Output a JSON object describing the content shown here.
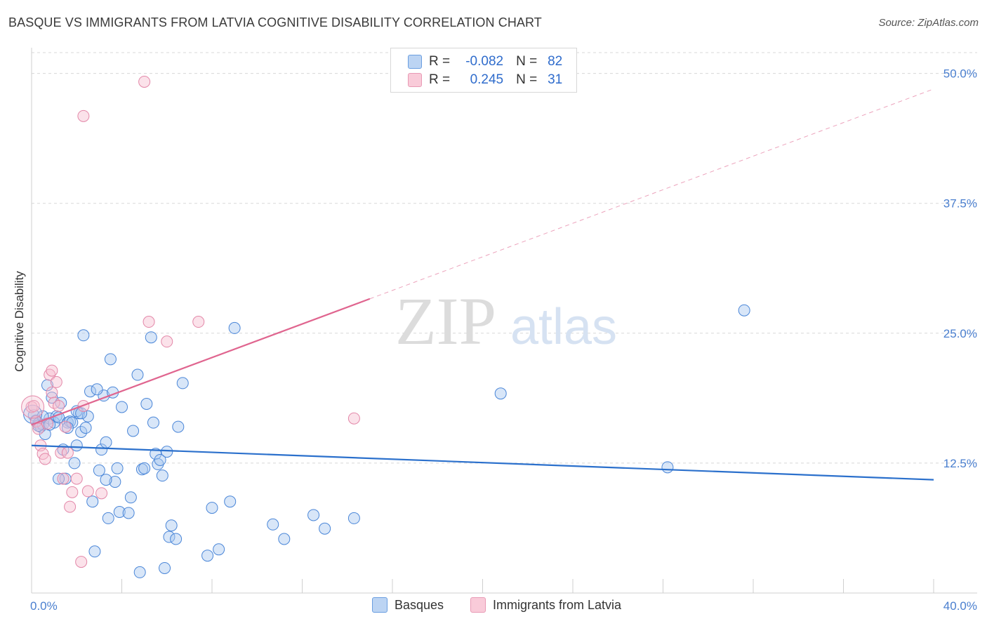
{
  "header": {
    "title": "BASQUE VS IMMIGRANTS FROM LATVIA COGNITIVE DISABILITY CORRELATION CHART",
    "source": "Source: ZipAtlas.com"
  },
  "legend": {
    "rows": [
      {
        "r_label": "R =",
        "r_value": "-0.082",
        "n_label": "N =",
        "n_value": "82"
      },
      {
        "r_label": "R =",
        "r_value": "0.245",
        "n_label": "N =",
        "n_value": "31"
      }
    ]
  },
  "bottom_legend": {
    "items": [
      {
        "label": "Basques"
      },
      {
        "label": "Immigrants from Latvia"
      }
    ]
  },
  "watermark": {
    "zip": "ZIP",
    "atlas": "atlas"
  },
  "colors": {
    "basques_fill": "#a9c8f0",
    "basques_stroke": "#4a86d8",
    "basques_line": "#2b70cc",
    "latvia_fill": "#f7bfd0",
    "latvia_stroke": "#e387a8",
    "latvia_line": "#e0658f",
    "tick_text": "#4a7fcf",
    "grid": "#d8d8d8"
  },
  "chart_data": {
    "type": "scatter",
    "title": "BASQUE VS IMMIGRANTS FROM LATVIA COGNITIVE DISABILITY CORRELATION CHART",
    "xlabel": "",
    "ylabel": "Cognitive Disability",
    "xlim": [
      0,
      40
    ],
    "ylim": [
      0,
      52
    ],
    "x_ticks": [
      0,
      4,
      8,
      12,
      16,
      20,
      24,
      28,
      32,
      36,
      40
    ],
    "x_tick_labels": {
      "0": "0.0%",
      "40": "40.0%"
    },
    "y_ticks": [
      12.5,
      25.0,
      37.5,
      50.0
    ],
    "y_tick_labels": [
      "12.5%",
      "25.0%",
      "37.5%",
      "50.0%"
    ],
    "grid": true,
    "legend_position": "top-center",
    "series": [
      {
        "name": "Basques",
        "r": -0.082,
        "n": 82,
        "trend": {
          "x0": 0,
          "y0": 14.2,
          "x1": 40,
          "y1": 10.9,
          "dashed_from": null
        },
        "points": [
          [
            0.1,
            17.1
          ],
          [
            0.2,
            16.6
          ],
          [
            0.3,
            16.3
          ],
          [
            0.4,
            16.0
          ],
          [
            0.5,
            16.2
          ],
          [
            0.6,
            15.3
          ],
          [
            0.7,
            20.0
          ],
          [
            0.8,
            16.8
          ],
          [
            0.9,
            18.8
          ],
          [
            1.0,
            16.4
          ],
          [
            1.1,
            17.0
          ],
          [
            1.2,
            16.9
          ],
          [
            1.3,
            18.3
          ],
          [
            1.4,
            13.8
          ],
          [
            1.5,
            11.0
          ],
          [
            1.6,
            16.4
          ],
          [
            1.7,
            16.5
          ],
          [
            1.8,
            16.4
          ],
          [
            1.9,
            12.5
          ],
          [
            2.0,
            14.2
          ],
          [
            2.1,
            17.3
          ],
          [
            2.2,
            15.5
          ],
          [
            2.0,
            17.5
          ],
          [
            2.4,
            15.9
          ],
          [
            2.5,
            17.0
          ],
          [
            2.6,
            19.4
          ],
          [
            2.7,
            8.8
          ],
          [
            2.8,
            4.0
          ],
          [
            2.3,
            24.8
          ],
          [
            3.0,
            11.8
          ],
          [
            3.1,
            13.8
          ],
          [
            3.2,
            19.0
          ],
          [
            2.9,
            19.6
          ],
          [
            3.3,
            14.5
          ],
          [
            3.5,
            22.5
          ],
          [
            3.4,
            7.2
          ],
          [
            3.6,
            19.3
          ],
          [
            3.7,
            10.7
          ],
          [
            3.8,
            12.0
          ],
          [
            3.9,
            7.8
          ],
          [
            4.0,
            17.9
          ],
          [
            4.3,
            7.7
          ],
          [
            4.4,
            9.2
          ],
          [
            4.5,
            15.6
          ],
          [
            4.7,
            21.0
          ],
          [
            4.8,
            2.0
          ],
          [
            4.9,
            11.9
          ],
          [
            5.0,
            12.0
          ],
          [
            5.1,
            18.2
          ],
          [
            5.3,
            24.6
          ],
          [
            5.4,
            16.4
          ],
          [
            5.5,
            13.4
          ],
          [
            5.6,
            12.4
          ],
          [
            5.7,
            12.8
          ],
          [
            5.8,
            11.3
          ],
          [
            5.9,
            2.4
          ],
          [
            6.0,
            13.6
          ],
          [
            6.1,
            5.4
          ],
          [
            6.2,
            6.5
          ],
          [
            6.4,
            5.2
          ],
          [
            6.5,
            16.0
          ],
          [
            6.7,
            20.2
          ],
          [
            7.8,
            3.6
          ],
          [
            8.0,
            8.2
          ],
          [
            8.3,
            4.2
          ],
          [
            8.8,
            8.8
          ],
          [
            9.0,
            25.5
          ],
          [
            10.7,
            6.6
          ],
          [
            11.2,
            5.2
          ],
          [
            12.5,
            7.5
          ],
          [
            13.0,
            6.2
          ],
          [
            14.3,
            7.2
          ],
          [
            20.8,
            19.2
          ],
          [
            28.2,
            12.1
          ],
          [
            31.6,
            27.2
          ],
          [
            0.3,
            16.1
          ],
          [
            1.2,
            11.0
          ],
          [
            1.6,
            15.9
          ],
          [
            3.3,
            10.9
          ],
          [
            0.5,
            17.0
          ],
          [
            0.8,
            16.2
          ],
          [
            2.2,
            17.3
          ]
        ]
      },
      {
        "name": "Immigrants from Latvia",
        "r": 0.245,
        "n": 31,
        "trend": {
          "x0": 0,
          "y0": 16.2,
          "x1": 40,
          "y1": 48.5,
          "dashed_from": 15.0
        },
        "points": [
          [
            0.0,
            17.9
          ],
          [
            0.1,
            18.0
          ],
          [
            0.2,
            16.5
          ],
          [
            0.3,
            15.8
          ],
          [
            0.4,
            14.2
          ],
          [
            0.5,
            13.4
          ],
          [
            0.6,
            12.9
          ],
          [
            0.7,
            16.3
          ],
          [
            0.8,
            21.0
          ],
          [
            0.9,
            19.3
          ],
          [
            1.0,
            18.3
          ],
          [
            1.1,
            20.3
          ],
          [
            1.2,
            18.0
          ],
          [
            1.3,
            13.5
          ],
          [
            1.4,
            11.0
          ],
          [
            1.5,
            16.0
          ],
          [
            1.6,
            13.5
          ],
          [
            1.7,
            8.3
          ],
          [
            1.8,
            9.7
          ],
          [
            2.0,
            11.0
          ],
          [
            2.2,
            3.0
          ],
          [
            2.3,
            18.0
          ],
          [
            2.3,
            45.9
          ],
          [
            2.5,
            9.8
          ],
          [
            3.1,
            9.6
          ],
          [
            5.0,
            49.2
          ],
          [
            5.2,
            26.1
          ],
          [
            6.0,
            24.2
          ],
          [
            7.4,
            26.1
          ],
          [
            14.3,
            16.8
          ],
          [
            0.9,
            21.4
          ]
        ]
      }
    ]
  }
}
